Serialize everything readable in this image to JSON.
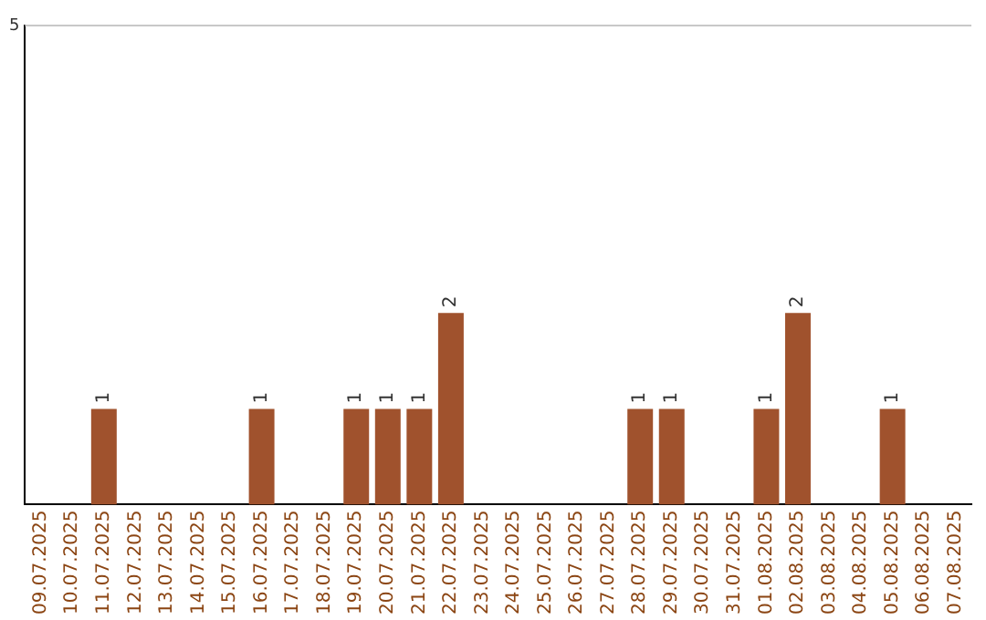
{
  "chart_data": {
    "type": "bar",
    "categories": [
      "09.07.2025",
      "10.07.2025",
      "11.07.2025",
      "12.07.2025",
      "13.07.2025",
      "14.07.2025",
      "15.07.2025",
      "16.07.2025",
      "17.07.2025",
      "18.07.2025",
      "19.07.2025",
      "20.07.2025",
      "21.07.2025",
      "22.07.2025",
      "23.07.2025",
      "24.07.2025",
      "25.07.2025",
      "26.07.2025",
      "27.07.2025",
      "28.07.2025",
      "29.07.2025",
      "30.07.2025",
      "31.07.2025",
      "01.08.2025",
      "02.08.2025",
      "03.08.2025",
      "04.08.2025",
      "05.08.2025",
      "06.08.2025",
      "07.08.2025"
    ],
    "values": [
      0,
      0,
      1,
      0,
      0,
      0,
      0,
      1,
      0,
      0,
      1,
      1,
      1,
      2,
      0,
      0,
      0,
      0,
      0,
      1,
      1,
      0,
      0,
      1,
      2,
      0,
      0,
      1,
      0,
      0
    ],
    "value_labels": [
      null,
      null,
      "1",
      null,
      null,
      null,
      null,
      "1",
      null,
      null,
      "1",
      "1",
      "1",
      "2",
      null,
      null,
      null,
      null,
      null,
      "1",
      "1",
      null,
      null,
      "1",
      "2",
      null,
      null,
      "1",
      null,
      null
    ],
    "color": "#a0522d",
    "ylim": [
      0,
      5
    ],
    "yticks": [
      5
    ],
    "ref_lines": [
      {
        "axis": "y",
        "value": 5,
        "color": "#c8c8c8"
      }
    ],
    "legend": false
  }
}
